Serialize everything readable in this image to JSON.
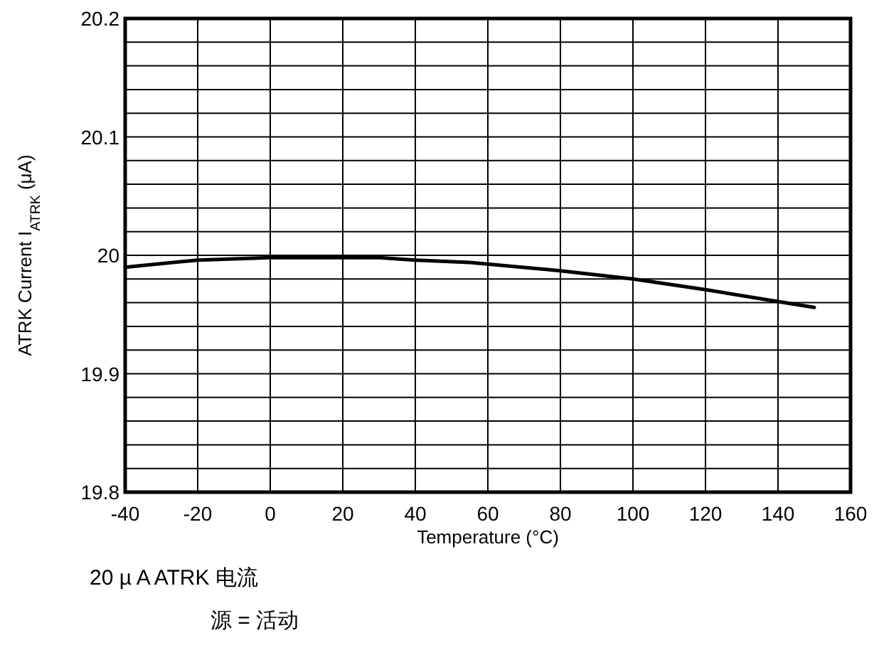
{
  "chart_data": {
    "type": "line",
    "xlabel": "Temperature (°C)",
    "ylabel": "ATRK Current I$_{ATRK}$ (μA)",
    "x": [
      -40,
      -20,
      0,
      20,
      30,
      40,
      55,
      80,
      100,
      120,
      140,
      150
    ],
    "series": [
      {
        "color": "#000000",
        "values": [
          19.99,
          19.996,
          19.998,
          19.998,
          19.998,
          19.996,
          19.994,
          19.987,
          19.98,
          19.971,
          19.961,
          19.956
        ]
      }
    ],
    "xlim": [
      -40,
      160
    ],
    "xticks": [
      -40,
      -20,
      0,
      20,
      40,
      60,
      80,
      100,
      120,
      140,
      160
    ],
    "ylim": [
      19.8,
      20.2
    ],
    "yticks": [
      19.8,
      {
        "value": 19.82,
        "label": null
      },
      {
        "value": 19.84,
        "label": null
      },
      {
        "value": 19.86,
        "label": null
      },
      {
        "value": 19.88,
        "label": null
      },
      19.9,
      {
        "value": 19.92,
        "label": null
      },
      {
        "value": 19.94,
        "label": null
      },
      {
        "value": 19.96,
        "label": null
      },
      {
        "value": 19.98,
        "label": null
      },
      20,
      {
        "value": 20.02,
        "label": null
      },
      {
        "value": 20.04,
        "label": null
      },
      {
        "value": 20.06,
        "label": null
      },
      {
        "value": 20.08,
        "label": null
      },
      20.1,
      {
        "value": 20.12,
        "label": null
      },
      {
        "value": 20.14,
        "label": null
      },
      {
        "value": 20.16,
        "label": null
      },
      {
        "value": 20.18,
        "label": null
      },
      20.2
    ],
    "grid": true,
    "marker": "none",
    "line_style": "solid",
    "annotations": [
      "20 µ A ATRK 电流",
      "源 = 活动"
    ]
  }
}
